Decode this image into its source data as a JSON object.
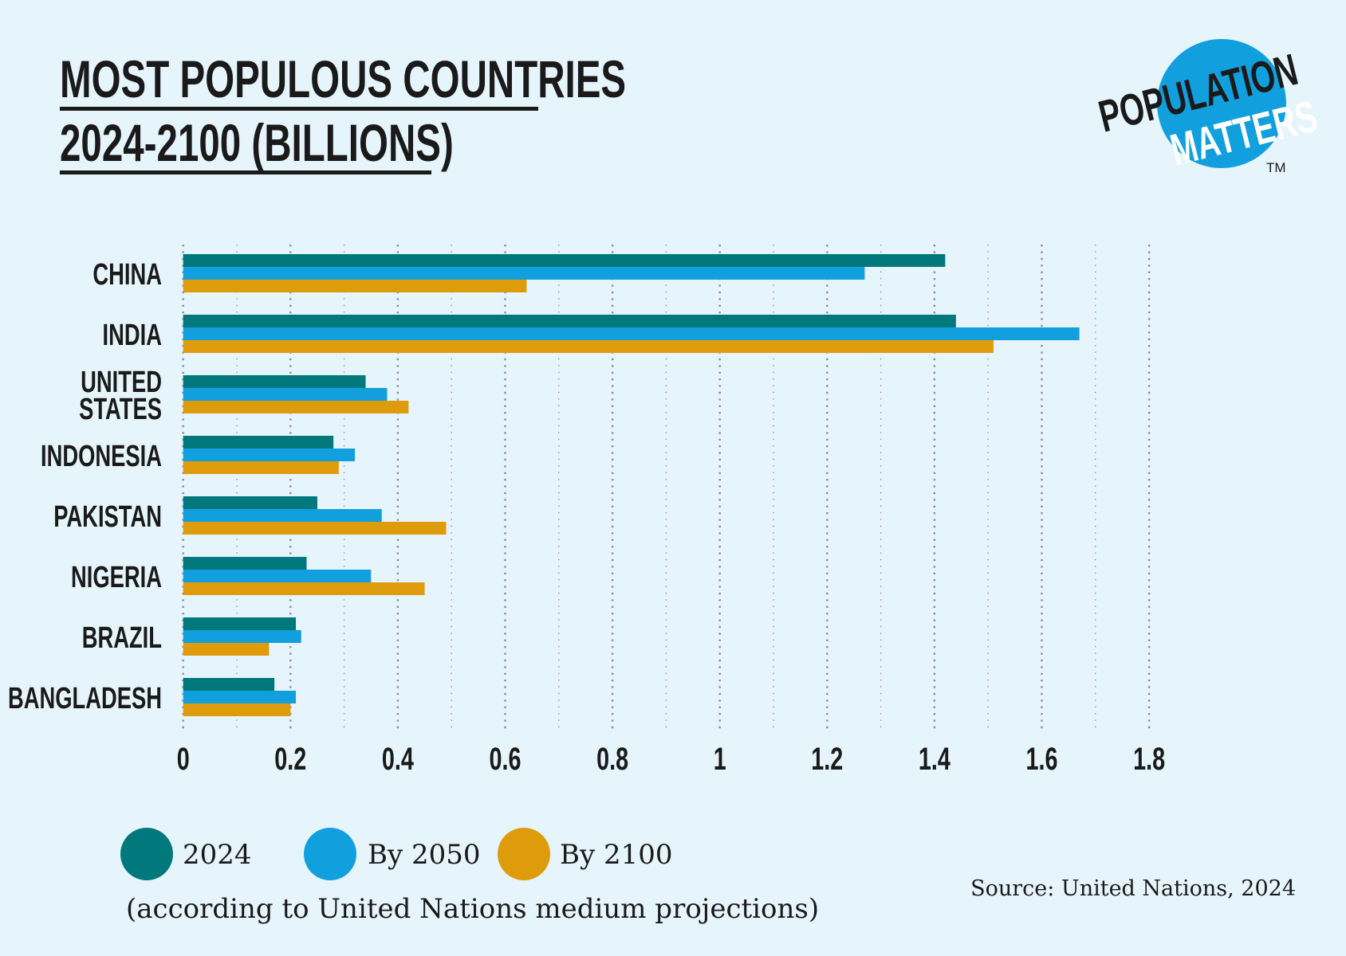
{
  "title_line1": "MOST POPULOUS COUNTRIES",
  "title_line2": "2024-2100 (BILLIONS)",
  "logo": {
    "word1": "POPULATION",
    "word2": "MATTERS",
    "tm": "TM",
    "circle_color": "#129FDD"
  },
  "legend": [
    {
      "label": "2024",
      "color": "#00787C"
    },
    {
      "label": "By 2050",
      "color": "#129FDD"
    },
    {
      "label": "By 2100",
      "color": "#DE9C0C"
    }
  ],
  "note": "(according to United Nations medium projections)",
  "source": "Source: United Nations, 2024",
  "chart_data": {
    "type": "bar",
    "orientation": "horizontal",
    "categories": [
      [
        "CHINA"
      ],
      [
        "INDIA"
      ],
      [
        "UNITED",
        "STATES"
      ],
      [
        "INDONESIA"
      ],
      [
        "PAKISTAN"
      ],
      [
        "NIGERIA"
      ],
      [
        "BRAZIL"
      ],
      [
        "BANGLADESH"
      ]
    ],
    "series": [
      {
        "name": "2024",
        "color": "#00787C",
        "values": [
          1.42,
          1.44,
          0.34,
          0.28,
          0.25,
          0.23,
          0.21,
          0.17
        ]
      },
      {
        "name": "By 2050",
        "color": "#129FDD",
        "values": [
          1.27,
          1.67,
          0.38,
          0.32,
          0.37,
          0.35,
          0.22,
          0.21
        ]
      },
      {
        "name": "By 2100",
        "color": "#DE9C0C",
        "values": [
          0.64,
          1.51,
          0.42,
          0.29,
          0.49,
          0.45,
          0.16,
          0.2
        ]
      }
    ],
    "xlim": [
      0,
      1.8
    ],
    "xticks": [
      "0",
      "0.2",
      "0.4",
      "0.6",
      "0.8",
      "1",
      "1.2",
      "1.4",
      "1.6",
      "1.8"
    ],
    "grid": "vertical dotted",
    "legend_position": "bottom-left"
  }
}
